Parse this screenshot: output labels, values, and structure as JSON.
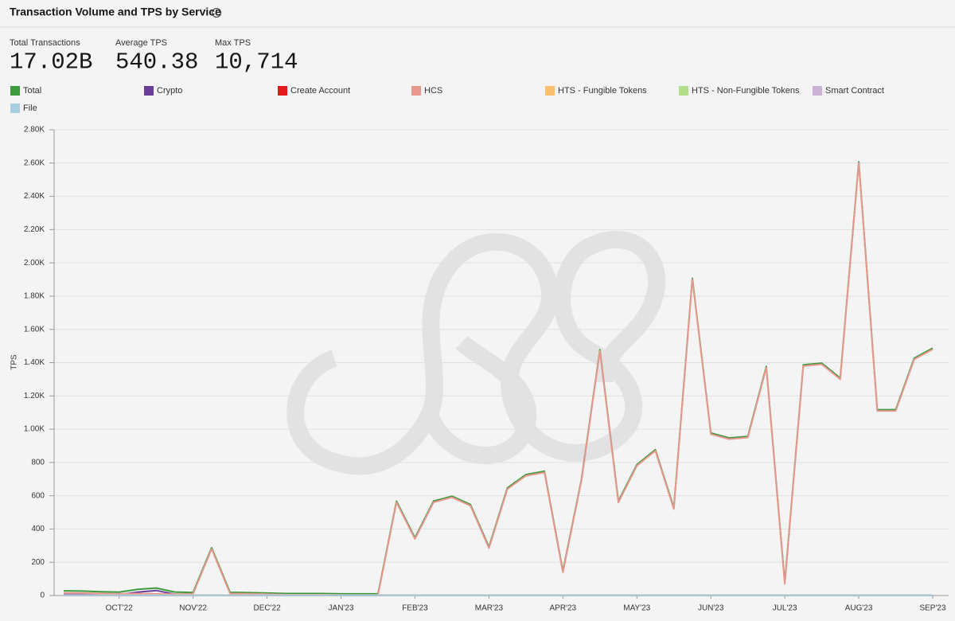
{
  "header": {
    "title": "Transaction Volume and TPS by Service"
  },
  "stats": [
    {
      "label": "Total Transactions",
      "value": "17.02B"
    },
    {
      "label": "Average TPS",
      "value": "540.38"
    },
    {
      "label": "Max TPS",
      "value": "10,714"
    }
  ],
  "chart_data": {
    "type": "line",
    "y_label": "TPS",
    "categories": [
      null,
      null,
      null,
      "OCT'22",
      null,
      null,
      null,
      "NOV'22",
      null,
      null,
      null,
      "DEC'22",
      null,
      null,
      null,
      "JAN'23",
      null,
      null,
      null,
      "FEB'23",
      null,
      null,
      null,
      "MAR'23",
      null,
      null,
      null,
      "APR'23",
      null,
      null,
      null,
      "MAY'23",
      null,
      null,
      null,
      "JUN'23",
      null,
      null,
      null,
      "JUL'23",
      null,
      null,
      null,
      "AUG'23",
      null,
      null,
      null,
      "SEP'23"
    ],
    "ylim": [
      0,
      2800
    ],
    "yticks": [
      0,
      200,
      400,
      600,
      800,
      {
        "value": 1000,
        "label": "1.00K"
      },
      {
        "value": 1200,
        "label": "1.20K"
      },
      {
        "value": 1400,
        "label": "1.40K"
      },
      {
        "value": 1600,
        "label": "1.60K"
      },
      {
        "value": 1800,
        "label": "1.80K"
      },
      {
        "value": 2000,
        "label": "2.00K"
      },
      {
        "value": 2200,
        "label": "2.20K"
      },
      {
        "value": 2400,
        "label": "2.40K"
      },
      {
        "value": 2600,
        "label": "2.60K"
      },
      {
        "value": 2800,
        "label": "2.80K"
      }
    ],
    "grid": true,
    "series": [
      {
        "name": "Total",
        "color": "#3d9a3d",
        "values": [
          28,
          27,
          23,
          20,
          37,
          45,
          21,
          18,
          287,
          19,
          17,
          15,
          12,
          12,
          12,
          10,
          10,
          10,
          567,
          347,
          567,
          597,
          547,
          292,
          647,
          727,
          747,
          147,
          697,
          1477,
          567,
          787,
          877,
          527,
          1907,
          977,
          947,
          957,
          1377,
          77,
          1387,
          1397,
          1307,
          2607,
          1117,
          1117,
          1427,
          1487
        ]
      },
      {
        "name": "Crypto",
        "color": "#6a3d9a",
        "values": [
          8,
          7,
          6,
          5,
          20,
          30,
          8,
          3,
          2,
          2,
          2,
          2,
          2,
          2,
          2,
          2,
          2,
          2,
          2,
          2,
          2,
          2,
          2,
          2,
          2,
          2,
          2,
          2,
          2,
          2,
          2,
          2,
          2,
          2,
          2,
          2,
          2,
          2,
          2,
          2,
          2,
          2,
          2,
          2,
          2,
          2,
          2,
          2
        ]
      },
      {
        "name": "Create Account",
        "color": "#e31a1c",
        "values": [
          0,
          0,
          0,
          0,
          0,
          0,
          0,
          0,
          0,
          0,
          0,
          0,
          0,
          0,
          0,
          0,
          0,
          0,
          0,
          0,
          0,
          0,
          0,
          0,
          0,
          0,
          0,
          0,
          0,
          0,
          0,
          0,
          0,
          0,
          0,
          0,
          0,
          0,
          0,
          0,
          0,
          0,
          0,
          0,
          0,
          0,
          0,
          0
        ]
      },
      {
        "name": "HCS",
        "color": "#e8978e",
        "values": [
          15,
          15,
          12,
          10,
          12,
          10,
          8,
          10,
          280,
          12,
          10,
          8,
          5,
          5,
          5,
          3,
          3,
          3,
          560,
          340,
          560,
          590,
          540,
          285,
          640,
          720,
          740,
          140,
          690,
          1470,
          560,
          780,
          870,
          520,
          1900,
          970,
          940,
          950,
          1370,
          70,
          1380,
          1390,
          1300,
          2600,
          1110,
          1110,
          1420,
          1480
        ]
      },
      {
        "name": "HTS - Fungible Tokens",
        "color": "#fdbf6f",
        "values": [
          3,
          3,
          3,
          3,
          3,
          3,
          3,
          3,
          3,
          3,
          3,
          3,
          3,
          3,
          3,
          3,
          3,
          3,
          3,
          3,
          3,
          3,
          3,
          3,
          3,
          3,
          3,
          3,
          3,
          3,
          3,
          3,
          3,
          3,
          3,
          3,
          3,
          3,
          3,
          3,
          3,
          3,
          3,
          3,
          3,
          3,
          3,
          3
        ]
      },
      {
        "name": "HTS - Non-Fungible Tokens",
        "color": "#b2df8a",
        "values": [
          1,
          1,
          1,
          1,
          1,
          1,
          1,
          1,
          1,
          1,
          1,
          1,
          1,
          1,
          1,
          1,
          1,
          1,
          1,
          1,
          1,
          1,
          1,
          1,
          1,
          1,
          1,
          1,
          1,
          1,
          1,
          1,
          1,
          1,
          1,
          1,
          1,
          1,
          1,
          1,
          1,
          1,
          1,
          1,
          1,
          1,
          1,
          1
        ]
      },
      {
        "name": "Smart Contract",
        "color": "#cab2d6",
        "values": [
          2,
          2,
          2,
          2,
          2,
          2,
          2,
          2,
          2,
          2,
          2,
          2,
          2,
          2,
          2,
          2,
          2,
          2,
          2,
          2,
          2,
          2,
          2,
          2,
          2,
          2,
          2,
          2,
          2,
          2,
          2,
          2,
          2,
          2,
          2,
          2,
          2,
          2,
          2,
          2,
          2,
          2,
          2,
          2,
          2,
          2,
          2,
          2
        ]
      },
      {
        "name": "File",
        "color": "#a6cee3",
        "values": [
          1,
          1,
          1,
          1,
          1,
          1,
          1,
          1,
          1,
          1,
          1,
          1,
          1,
          1,
          1,
          1,
          1,
          1,
          1,
          1,
          1,
          1,
          1,
          1,
          1,
          1,
          1,
          1,
          1,
          1,
          1,
          1,
          1,
          1,
          1,
          1,
          1,
          1,
          1,
          1,
          1,
          1,
          1,
          1,
          1,
          1,
          1,
          1
        ]
      }
    ]
  }
}
